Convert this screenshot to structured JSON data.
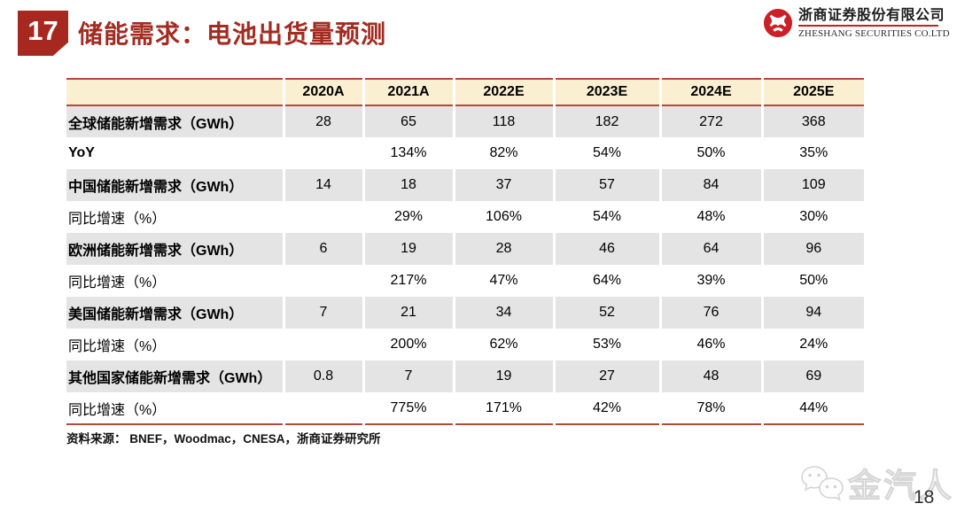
{
  "header": {
    "badge": "17",
    "title": "储能需求：电池出货量预测"
  },
  "logo": {
    "company_cn": "浙商证券股份有限公司",
    "company_en": "ZHESHANG SECURITIES CO.LTD"
  },
  "table": {
    "columns": [
      "2020A",
      "2021A",
      "2022E",
      "2023E",
      "2024E",
      "2025E"
    ],
    "rows": [
      {
        "label": "全球储能新增需求（GWh）",
        "bold": true,
        "values": [
          "28",
          "65",
          "118",
          "182",
          "272",
          "368"
        ]
      },
      {
        "label": "YoY",
        "bold": true,
        "values": [
          "",
          "134%",
          "82%",
          "54%",
          "50%",
          "35%"
        ]
      },
      {
        "label": "中国储能新增需求（GWh）",
        "bold": true,
        "values": [
          "14",
          "18",
          "37",
          "57",
          "84",
          "109"
        ]
      },
      {
        "label": "同比增速（%）",
        "bold": false,
        "values": [
          "",
          "29%",
          "106%",
          "54%",
          "48%",
          "30%"
        ]
      },
      {
        "label": "欧洲储能新增需求（GWh）",
        "bold": true,
        "values": [
          "6",
          "19",
          "28",
          "46",
          "64",
          "96"
        ]
      },
      {
        "label": "同比增速（%）",
        "bold": false,
        "values": [
          "",
          "217%",
          "47%",
          "64%",
          "39%",
          "50%"
        ]
      },
      {
        "label": "美国储能新增需求（GWh）",
        "bold": true,
        "values": [
          "7",
          "21",
          "34",
          "52",
          "76",
          "94"
        ]
      },
      {
        "label": "同比增速（%）",
        "bold": false,
        "values": [
          "",
          "200%",
          "62%",
          "53%",
          "46%",
          "24%"
        ]
      },
      {
        "label": "其他国家储能新增需求（GWh）",
        "bold": true,
        "values": [
          "0.8",
          "7",
          "19",
          "27",
          "48",
          "69"
        ]
      },
      {
        "label": "同比增速（%）",
        "bold": false,
        "values": [
          "",
          "775%",
          "171%",
          "42%",
          "78%",
          "44%"
        ]
      }
    ]
  },
  "source": "资料来源： BNEF，Woodmac，CNESA，浙商证券研究所",
  "footer": {
    "watermark_text": "金汽人",
    "page_number": "18"
  },
  "colors": {
    "accent_red": "#A32B20",
    "brand_red": "#C4201F",
    "table_border": "#B4493B",
    "header_bg": "#FBEFD2",
    "row_shade": "#E4E4E4"
  },
  "chart_data": {
    "type": "table",
    "title": "储能需求：电池出货量预测",
    "categories": [
      "2020A",
      "2021A",
      "2022E",
      "2023E",
      "2024E",
      "2025E"
    ],
    "series": [
      {
        "name": "全球储能新增需求（GWh）",
        "values": [
          28,
          65,
          118,
          182,
          272,
          368
        ]
      },
      {
        "name": "YoY",
        "values": [
          null,
          "134%",
          "82%",
          "54%",
          "50%",
          "35%"
        ]
      },
      {
        "name": "中国储能新增需求（GWh）",
        "values": [
          14,
          18,
          37,
          57,
          84,
          109
        ]
      },
      {
        "name": "中国同比增速（%）",
        "values": [
          null,
          "29%",
          "106%",
          "54%",
          "48%",
          "30%"
        ]
      },
      {
        "name": "欧洲储能新增需求（GWh）",
        "values": [
          6,
          19,
          28,
          46,
          64,
          96
        ]
      },
      {
        "name": "欧洲同比增速（%）",
        "values": [
          null,
          "217%",
          "47%",
          "64%",
          "39%",
          "50%"
        ]
      },
      {
        "name": "美国储能新增需求（GWh）",
        "values": [
          7,
          21,
          34,
          52,
          76,
          94
        ]
      },
      {
        "name": "美国同比增速（%）",
        "values": [
          null,
          "200%",
          "62%",
          "53%",
          "46%",
          "24%"
        ]
      },
      {
        "name": "其他国家储能新增需求（GWh）",
        "values": [
          0.8,
          7,
          19,
          27,
          48,
          69
        ]
      },
      {
        "name": "其他国家同比增速（%）",
        "values": [
          null,
          "775%",
          "171%",
          "42%",
          "78%",
          "44%"
        ]
      }
    ]
  }
}
